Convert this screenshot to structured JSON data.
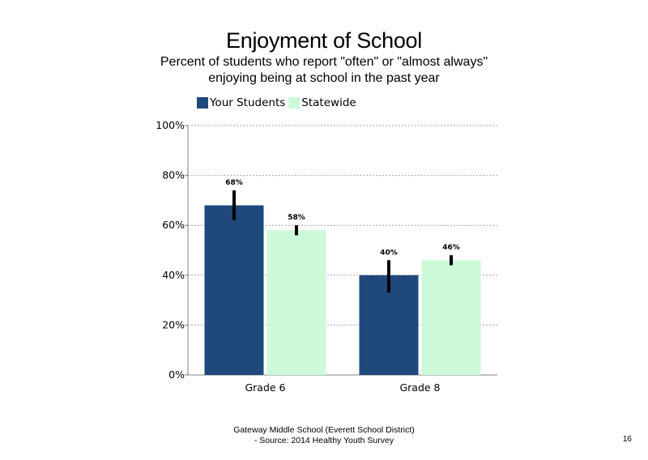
{
  "slide": {
    "title": "Enjoyment of School",
    "subtitle": "Percent of students who report \"often\" or \"almost always\" enjoying being at school in the past year",
    "footer_line1": "Gateway Middle School (Everett School District)",
    "footer_line2": "- Source: 2014 Healthy Youth Survey",
    "page_number": "16"
  },
  "legend": {
    "items": [
      {
        "label": "Your Students",
        "color": "#1f497d"
      },
      {
        "label": "Statewide",
        "color": "#ccfad9"
      }
    ]
  },
  "chart_data": {
    "type": "bar",
    "categories": [
      "Grade 6",
      "Grade 8"
    ],
    "series": [
      {
        "name": "Your Students",
        "color": "#1f497d",
        "values": [
          68,
          40
        ],
        "labels": [
          "68%",
          "40%"
        ],
        "error_low": [
          62,
          33
        ],
        "error_high": [
          74,
          46
        ]
      },
      {
        "name": "Statewide",
        "color": "#ccfad9",
        "values": [
          58,
          46
        ],
        "labels": [
          "58%",
          "46%"
        ],
        "error_low": [
          56,
          44
        ],
        "error_high": [
          60,
          48
        ]
      }
    ],
    "ylim": [
      0,
      100
    ],
    "yticks": [
      0,
      20,
      40,
      60,
      80,
      100
    ],
    "ytick_labels": [
      "0%",
      "20%",
      "40%",
      "60%",
      "80%",
      "100%"
    ],
    "grid": true,
    "legend_position": "top"
  }
}
